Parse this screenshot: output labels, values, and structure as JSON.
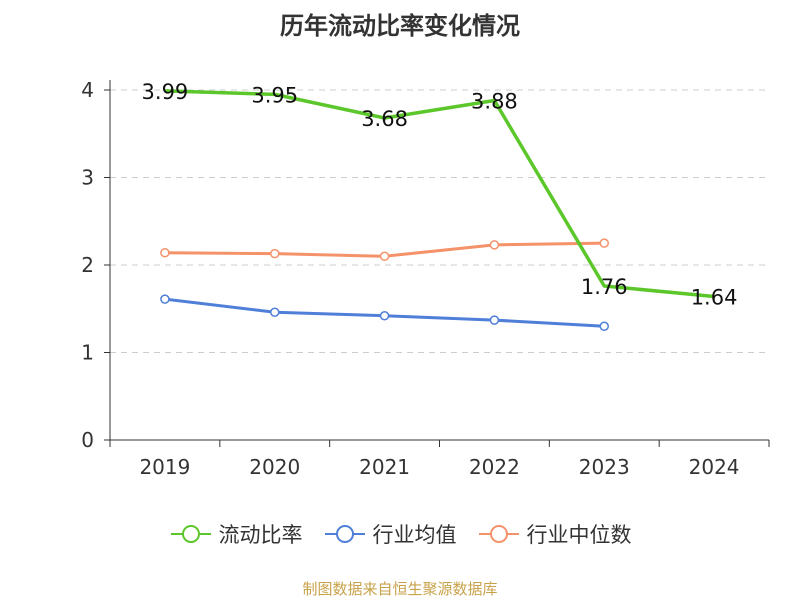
{
  "chart_data": {
    "type": "line",
    "title": "历年流动比率变化情况",
    "categories": [
      "2019",
      "2020",
      "2021",
      "2022",
      "2023",
      "2024"
    ],
    "ylim": [
      0,
      4
    ],
    "yticks": [
      "0",
      "1",
      "2",
      "3",
      "4"
    ],
    "grid": true,
    "legend_position": "bottom",
    "series": [
      {
        "name": "流动比率",
        "color": "#5cc72a",
        "values": [
          3.99,
          3.95,
          3.68,
          3.88,
          1.76,
          1.64
        ],
        "labels": [
          "3.99",
          "3.95",
          "3.68",
          "3.88",
          "1.76",
          "1.64"
        ]
      },
      {
        "name": "行业均值",
        "color": "#4f7fd8",
        "values": [
          1.61,
          1.46,
          1.42,
          1.37,
          1.3,
          null
        ]
      },
      {
        "name": "行业中位数",
        "color": "#f4936a",
        "values": [
          2.14,
          2.13,
          2.1,
          2.23,
          2.25,
          null
        ]
      }
    ]
  },
  "footer": {
    "source": "制图数据来自恒生聚源数据库"
  }
}
